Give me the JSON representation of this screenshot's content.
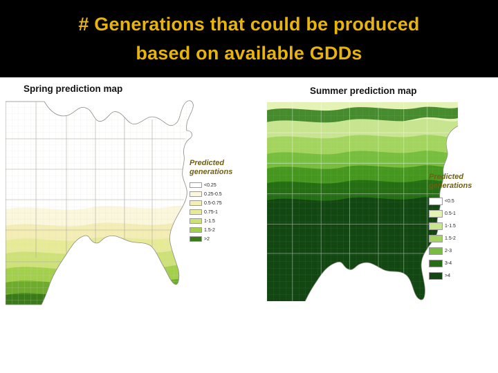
{
  "slide": {
    "title_line1": "# Generations that could be produced",
    "title_line2": "based on available GDDs",
    "title_color": "#e8b40a",
    "header_background": "#000000"
  },
  "spring": {
    "label": "Spring prediction map",
    "legend_title": "Predicted generations",
    "legend": [
      {
        "label": "<0.25",
        "color": "#ffffff"
      },
      {
        "label": "0.25-0.5",
        "color": "#fbf7dd"
      },
      {
        "label": "0.5-0.75",
        "color": "#f4eeb4"
      },
      {
        "label": "0.75-1",
        "color": "#e7ea96"
      },
      {
        "label": "1-1.5",
        "color": "#cde178"
      },
      {
        "label": "1.5-2",
        "color": "#a2cf4c"
      },
      {
        "label": ">2",
        "color": "#3b7a19"
      }
    ]
  },
  "summer": {
    "label": "Summer prediction map",
    "legend_title": "Predicted generations",
    "legend": [
      {
        "label": "<0.5",
        "color": "#ffffff"
      },
      {
        "label": "0.5-1",
        "color": "#e4f2b4"
      },
      {
        "label": "1-1.5",
        "color": "#c7e48f"
      },
      {
        "label": "1.5-2",
        "color": "#a3d45f"
      },
      {
        "label": "2-3",
        "color": "#77bd3e"
      },
      {
        "label": "3-4",
        "color": "#256e14"
      },
      {
        "label": ">4",
        "color": "#124712"
      }
    ]
  }
}
